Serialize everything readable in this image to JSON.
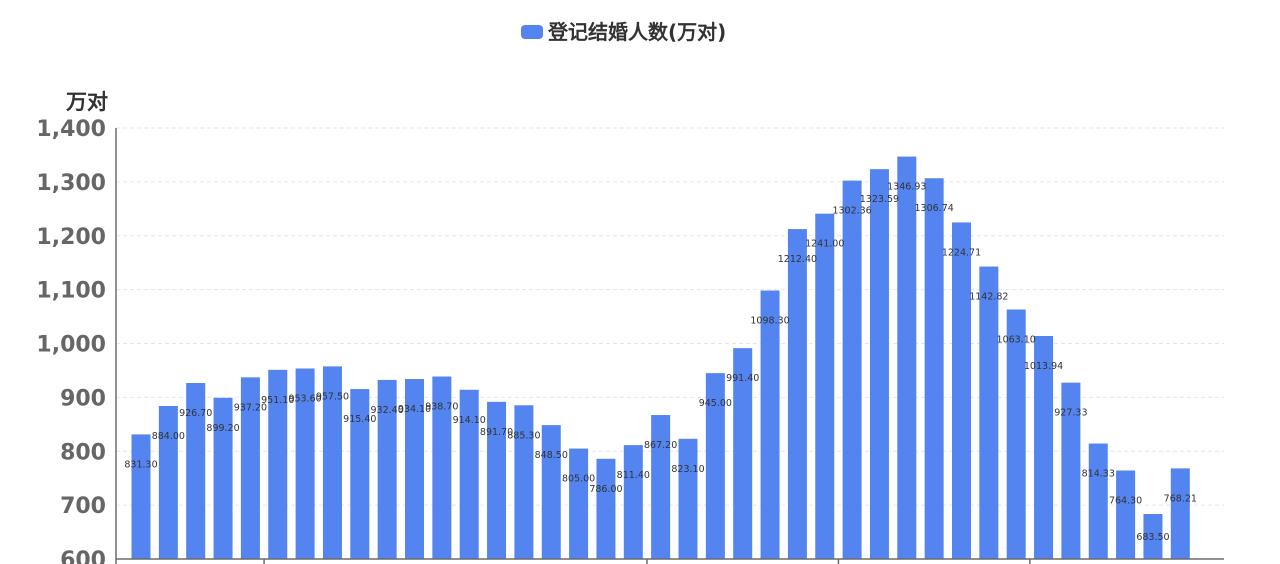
{
  "chart_data": {
    "type": "bar",
    "legend": [
      {
        "name": "登记结婚人数(万对)",
        "color": "#5384f0"
      }
    ],
    "ylabel": "万对",
    "ylim": [
      600,
      1400
    ],
    "y_ticks": [
      "600",
      "700",
      "800",
      "900",
      "1,000",
      "1,100",
      "1,200",
      "1,300",
      "1,400"
    ],
    "grid": true,
    "legend_position": "top-center",
    "series": [
      {
        "name": "登记结婚人数(万对)",
        "color": "#5384f0",
        "values": [
          831.3,
          884.0,
          926.7,
          899.2,
          937.2,
          951.1,
          953.6,
          957.5,
          915.4,
          932.4,
          934.1,
          938.7,
          914.1,
          891.7,
          885.3,
          848.5,
          805.0,
          786.0,
          811.4,
          867.2,
          823.1,
          945.0,
          991.4,
          1098.3,
          1212.4,
          1241.0,
          1302.36,
          1323.59,
          1346.93,
          1306.74,
          1224.71,
          1142.82,
          1063.1,
          1013.94,
          927.33,
          814.33,
          764.3,
          683.5,
          768.21
        ]
      }
    ],
    "data_labels": [
      "831.30",
      "884.00",
      "926.70",
      "899.20",
      "937.20",
      "951.10",
      "953.60",
      "957.50",
      "915.40",
      "932.40",
      "934.10",
      "938.70",
      "914.10",
      "891.70",
      "885.30",
      "848.50",
      "805.00",
      "786.00",
      "811.40",
      "867.20",
      "823.10",
      "945.00",
      "991.40",
      "1098.30",
      "1212.40",
      "1241.00",
      "1302.36",
      "1323.59",
      "1346.93",
      "1306.74",
      "1224.71",
      "1142.82",
      "1063.10",
      "1013.94",
      "927.33",
      "814.33",
      "764.30",
      "683.50",
      "768.21"
    ]
  }
}
